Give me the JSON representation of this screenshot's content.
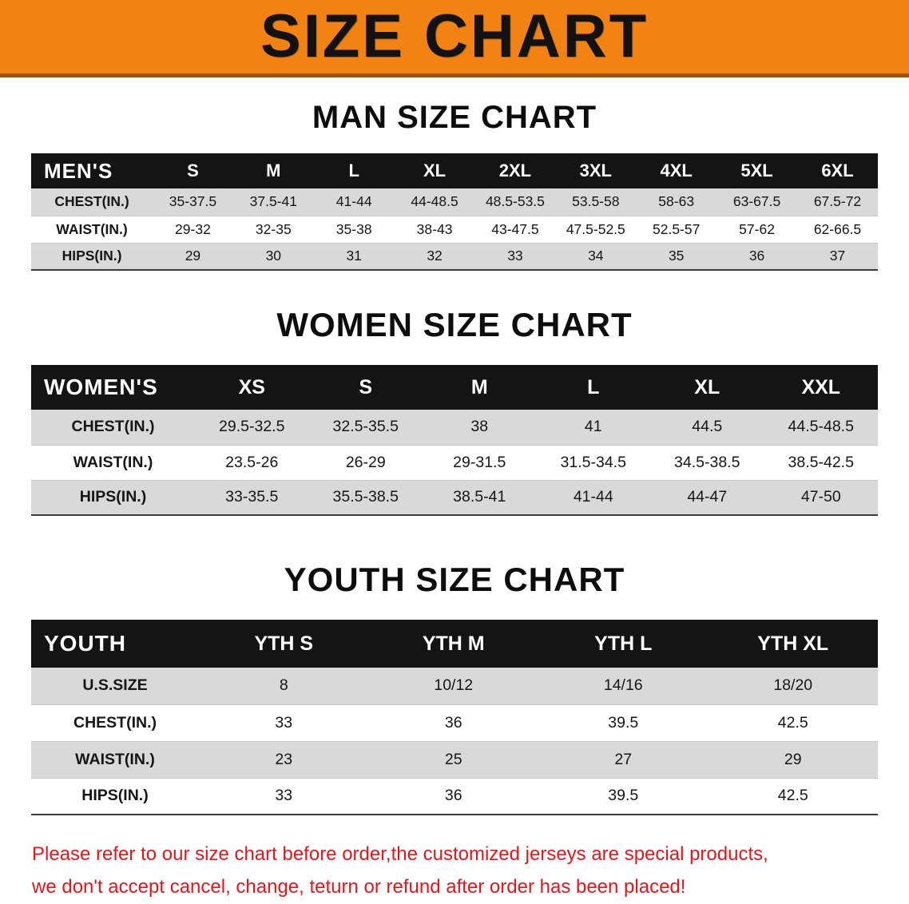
{
  "banner": {
    "title": "SIZE CHART"
  },
  "colors": {
    "banner_bg": "#f28313",
    "table_header_bg": "#141414",
    "row_stripe": "#d9d9d9",
    "disclaimer_text": "#e2161c"
  },
  "chart_data": [
    {
      "type": "table",
      "title": "MAN SIZE CHART",
      "label": "MEN'S",
      "columns": [
        "S",
        "M",
        "L",
        "XL",
        "2XL",
        "3XL",
        "4XL",
        "5XL",
        "6XL"
      ],
      "rows": [
        {
          "label": "CHEST(IN.)",
          "values": [
            "35-37.5",
            "37.5-41",
            "41-44",
            "44-48.5",
            "48.5-53.5",
            "53.5-58",
            "58-63",
            "63-67.5",
            "67.5-72"
          ]
        },
        {
          "label": "WAIST(IN.)",
          "values": [
            "29-32",
            "32-35",
            "35-38",
            "38-43",
            "43-47.5",
            "47.5-52.5",
            "52.5-57",
            "57-62",
            "62-66.5"
          ]
        },
        {
          "label": "HIPS(IN.)",
          "values": [
            "29",
            "30",
            "31",
            "32",
            "33",
            "34",
            "35",
            "36",
            "37"
          ]
        }
      ]
    },
    {
      "type": "table",
      "title": "WOMEN SIZE CHART",
      "label": "WOMEN'S",
      "columns": [
        "XS",
        "S",
        "M",
        "L",
        "XL",
        "XXL"
      ],
      "rows": [
        {
          "label": "CHEST(IN.)",
          "values": [
            "29.5-32.5",
            "32.5-35.5",
            "38",
            "41",
            "44.5",
            "44.5-48.5"
          ]
        },
        {
          "label": "WAIST(IN.)",
          "values": [
            "23.5-26",
            "26-29",
            "29-31.5",
            "31.5-34.5",
            "34.5-38.5",
            "38.5-42.5"
          ]
        },
        {
          "label": "HIPS(IN.)",
          "values": [
            "33-35.5",
            "35.5-38.5",
            "38.5-41",
            "41-44",
            "44-47",
            "47-50"
          ]
        }
      ]
    },
    {
      "type": "table",
      "title": "YOUTH SIZE CHART",
      "label": "YOUTH",
      "columns": [
        "YTH S",
        "YTH M",
        "YTH L",
        "YTH XL"
      ],
      "rows": [
        {
          "label": "U.S.SIZE",
          "values": [
            "8",
            "10/12",
            "14/16",
            "18/20"
          ]
        },
        {
          "label": "CHEST(IN.)",
          "values": [
            "33",
            "36",
            "39.5",
            "42.5"
          ]
        },
        {
          "label": "WAIST(IN.)",
          "values": [
            "23",
            "25",
            "27",
            "29"
          ]
        },
        {
          "label": "HIPS(IN.)",
          "values": [
            "33",
            "36",
            "39.5",
            "42.5"
          ]
        }
      ]
    }
  ],
  "disclaimer": {
    "line1": "Please refer to our size chart before order,the customized jerseys are special products,",
    "line2": "we don't accept cancel, change, teturn or refund after order has been placed!"
  }
}
